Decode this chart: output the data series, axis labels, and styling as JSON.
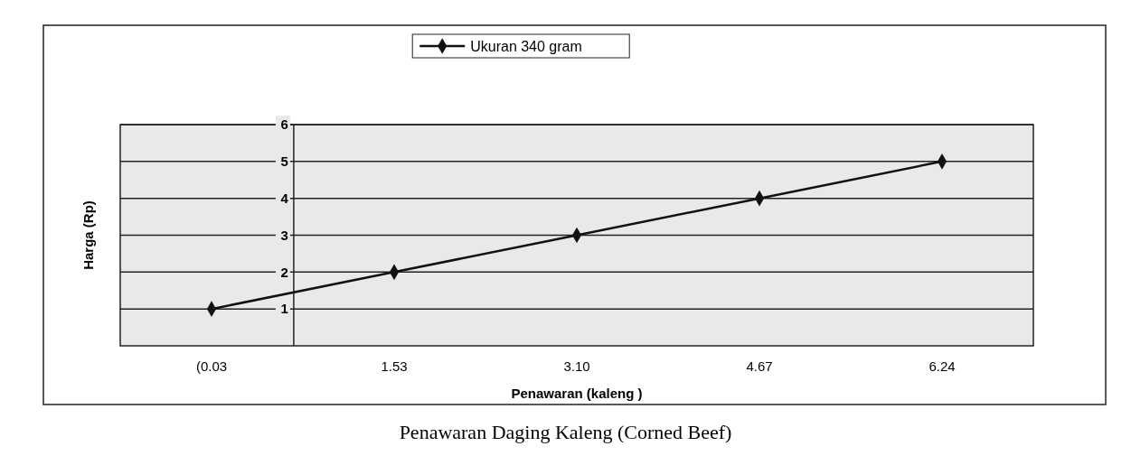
{
  "chart_data": {
    "type": "line",
    "categories": [
      "(0.03",
      "1.53",
      "3.10",
      "4.67",
      "6.24"
    ],
    "series": [
      {
        "name": "Ukuran 340 gram",
        "color": "#111111",
        "values": [
          1,
          2,
          3,
          4,
          5
        ]
      }
    ],
    "ylim": [
      0,
      6
    ],
    "yticks": [
      1,
      2,
      3,
      4,
      5,
      6
    ],
    "xlabel": "Penawaran (kaleng )",
    "ylabel": "Harga (Rp)",
    "grid": "y",
    "legend": "top",
    "marker": "diamond",
    "line_style": "solid",
    "annotations": [
      "Penawaran Daging Kaleng (Corned Beef)"
    ]
  }
}
